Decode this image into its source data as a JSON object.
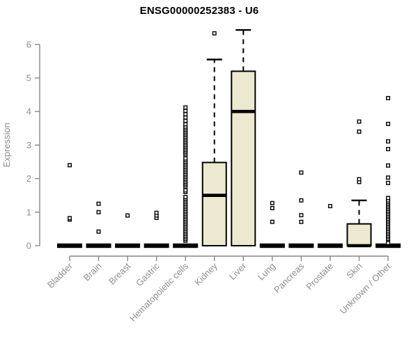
{
  "chart_data": {
    "type": "boxplot",
    "title": "ENSG00000252383 - U6",
    "xlabel": "",
    "ylabel": "Expression",
    "ylim": [
      0,
      6.6
    ],
    "yticks": [
      0,
      1,
      2,
      3,
      4,
      5,
      6
    ],
    "grid": "off",
    "legend": "none",
    "categories": [
      "Bladder",
      "Brain",
      "Breast",
      "Gastric",
      "Hematopoietic cells",
      "Kidney",
      "Liver",
      "Lung",
      "Pancreas",
      "Prostate",
      "Skin",
      "Unknown / Other"
    ],
    "boxes": [
      {
        "label": "Bladder",
        "q1": 0,
        "median": 0,
        "q3": 0,
        "whisker_low": 0,
        "whisker_high": 0,
        "outliers": [
          0.78,
          0.82,
          2.4
        ]
      },
      {
        "label": "Brain",
        "q1": 0,
        "median": 0,
        "q3": 0,
        "whisker_low": 0,
        "whisker_high": 0,
        "outliers": [
          0.42,
          1.0,
          1.25
        ]
      },
      {
        "label": "Breast",
        "q1": 0,
        "median": 0,
        "q3": 0,
        "whisker_low": 0,
        "whisker_high": 0,
        "outliers": [
          0.9
        ]
      },
      {
        "label": "Gastric",
        "q1": 0,
        "median": 0,
        "q3": 0,
        "whisker_low": 0,
        "whisker_high": 0,
        "outliers": [
          0.83,
          0.9,
          0.98
        ]
      },
      {
        "label": "Hematopoietic cells",
        "q1": 0,
        "median": 0,
        "q3": 0,
        "whisker_low": 0,
        "whisker_high": 0,
        "outliers": [
          0.15,
          0.2,
          0.25,
          0.3,
          0.35,
          0.4,
          0.45,
          0.5,
          0.55,
          0.6,
          0.65,
          0.7,
          0.75,
          0.8,
          0.85,
          0.9,
          0.95,
          1,
          1.05,
          1.1,
          1.15,
          1.2,
          1.25,
          1.3,
          1.35,
          1.4,
          1.45,
          1.6,
          1.65,
          1.75,
          1.8,
          1.85,
          1.9,
          1.95,
          2,
          2.05,
          2.1,
          2.15,
          2.2,
          2.25,
          2.3,
          2.35,
          2.4,
          2.45,
          2.5,
          2.55,
          2.6,
          2.7,
          2.75,
          2.8,
          2.85,
          2.9,
          2.95,
          3,
          3.05,
          3.1,
          3.15,
          3.2,
          3.25,
          3.3,
          3.35,
          3.4,
          3.45,
          3.5,
          3.55,
          3.62,
          3.72,
          3.82,
          3.92,
          4.02,
          4.12
        ]
      },
      {
        "label": "Kidney",
        "q1": 0,
        "median": 1.5,
        "q3": 2.48,
        "whisker_low": 0,
        "whisker_high": 5.55,
        "outliers": [
          6.33
        ]
      },
      {
        "label": "Liver",
        "q1": 0,
        "median": 4.0,
        "q3": 5.2,
        "whisker_low": 0,
        "whisker_high": 6.43,
        "outliers": []
      },
      {
        "label": "Lung",
        "q1": 0,
        "median": 0,
        "q3": 0,
        "whisker_low": 0,
        "whisker_high": 0,
        "outliers": [
          0.71,
          1.12,
          1.27
        ]
      },
      {
        "label": "Pancreas",
        "q1": 0,
        "median": 0,
        "q3": 0,
        "whisker_low": 0,
        "whisker_high": 0,
        "outliers": [
          0.71,
          0.91,
          1.35,
          2.18
        ]
      },
      {
        "label": "Prostate",
        "q1": 0,
        "median": 0,
        "q3": 0,
        "whisker_low": 0,
        "whisker_high": 0,
        "outliers": [
          1.18
        ]
      },
      {
        "label": "Skin",
        "q1": 0,
        "median": 0,
        "q3": 0.65,
        "whisker_low": 0,
        "whisker_high": 1.35,
        "outliers": [
          1.9,
          1.98,
          3.4,
          3.7
        ]
      },
      {
        "label": "Unknown / Other",
        "q1": 0,
        "median": 0,
        "q3": 0,
        "whisker_low": 0,
        "whisker_high": 0,
        "outliers": [
          0.08,
          0.2,
          0.25,
          0.3,
          0.35,
          0.4,
          0.45,
          0.5,
          0.55,
          0.6,
          0.65,
          0.7,
          0.75,
          0.8,
          0.85,
          0.9,
          0.95,
          1,
          1.05,
          1.1,
          1.15,
          1.2,
          1.25,
          1.3,
          1.35,
          1.42,
          1.87,
          2.03,
          2.39,
          2.88,
          3.11,
          3.63,
          4.4
        ]
      }
    ]
  },
  "colors": {
    "background": "#ffffff",
    "box_fill": "#EDE9D0",
    "box_stroke": "#000000",
    "median": "#000000",
    "whisker": "#000000",
    "outlier_stroke": "#000000",
    "outlier_fill": "#ffffff",
    "axis_line": "#878787",
    "tick_label": "#8f8f8f",
    "title": "#000000"
  }
}
